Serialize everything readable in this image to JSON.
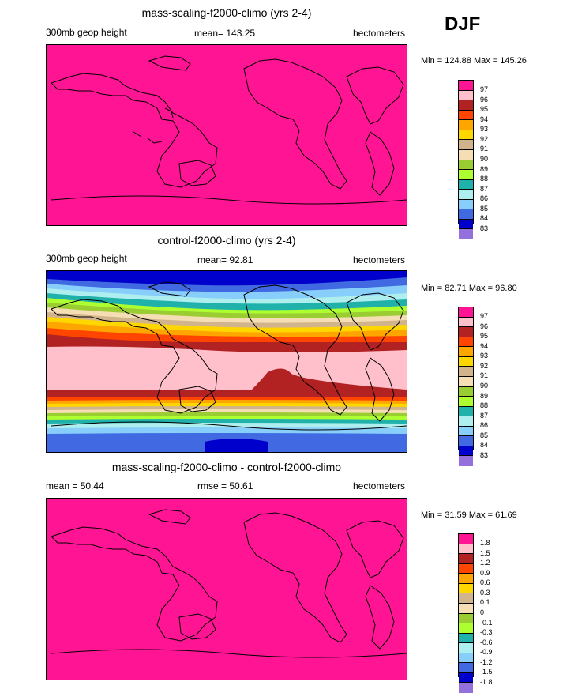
{
  "season": "DJF",
  "units_label": "hectometers",
  "panels": [
    {
      "title": "mass-scaling-f2000-climo (yrs 2-4)",
      "left_label": "300mb geop height",
      "center_label": "mean= 143.25",
      "right_label": "hectometers",
      "minmax": "Min = 124.88 Max = 145.26",
      "fill_color": "#FF1493",
      "legend_labels": [
        "97",
        "96",
        "95",
        "94",
        "93",
        "92",
        "91",
        "90",
        "89",
        "88",
        "87",
        "86",
        "85",
        "84",
        "83"
      ]
    },
    {
      "title": "control-f2000-climo (yrs 2-4)",
      "left_label": "300mb geop height",
      "center_label": "mean=  92.81",
      "right_label": "hectometers",
      "minmax": "Min = 82.71 Max = 96.80",
      "legend_labels": [
        "97",
        "96",
        "95",
        "94",
        "93",
        "92",
        "91",
        "90",
        "89",
        "88",
        "87",
        "86",
        "85",
        "84",
        "83"
      ]
    },
    {
      "title": "mass-scaling-f2000-climo - control-f2000-climo",
      "left_label": "mean =  50.44",
      "center_label": "rmse =  50.61",
      "right_label": "hectometers",
      "minmax": "Min = 31.59 Max = 61.69",
      "fill_color": "#FF1493",
      "legend_labels": [
        "1.8",
        "1.5",
        "1.2",
        "0.9",
        "0.6",
        "0.3",
        "0.1",
        "0",
        "-0.1",
        "-0.3",
        "-0.6",
        "-0.9",
        "-1.2",
        "-1.5",
        "-1.8"
      ]
    }
  ],
  "colorbar": [
    "#FF1493",
    "#FFC0CB",
    "#B22222",
    "#FF4500",
    "#FFA500",
    "#FFD700",
    "#D2B48C",
    "#F5DEB3",
    "#9ACD32",
    "#ADFF2F",
    "#20B2AA",
    "#AFEEEE",
    "#87CEFA",
    "#4169E1",
    "#0000CD",
    "#9370DB"
  ],
  "control_bands": [
    {
      "color": "#0000CD",
      "value": 83
    },
    {
      "color": "#4169E1",
      "value": 84
    },
    {
      "color": "#87CEFA",
      "value": 85
    },
    {
      "color": "#AFEEEE",
      "value": 86
    },
    {
      "color": "#20B2AA",
      "value": 87
    },
    {
      "color": "#ADFF2F",
      "value": 88
    },
    {
      "color": "#9ACD32",
      "value": 89
    },
    {
      "color": "#F5DEB3",
      "value": 90
    },
    {
      "color": "#D2B48C",
      "value": 91
    },
    {
      "color": "#FFD700",
      "value": 92
    },
    {
      "color": "#FFA500",
      "value": 93
    },
    {
      "color": "#FF4500",
      "value": 94
    },
    {
      "color": "#B22222",
      "value": 95
    },
    {
      "color": "#FFC0CB",
      "value": 96
    }
  ]
}
